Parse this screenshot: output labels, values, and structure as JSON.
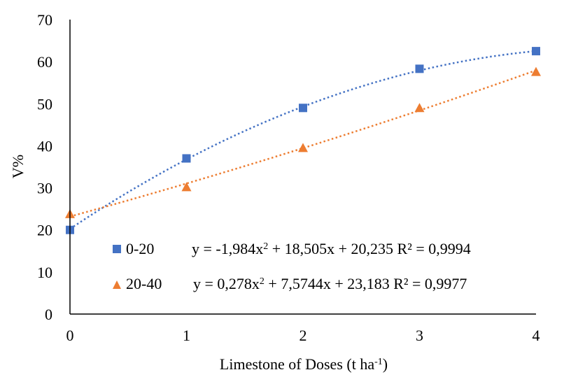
{
  "chart_data": {
    "type": "scatter",
    "title": "",
    "xlabel_prefix": "Limestone of Doses (t ha",
    "xlabel_sup": "-1",
    "xlabel_suffix": ")",
    "ylabel": "V%",
    "xlim": [
      0,
      4
    ],
    "ylim": [
      0,
      70
    ],
    "xticks": [
      "0",
      "1",
      "2",
      "3",
      "4"
    ],
    "yticks": [
      "0",
      "10",
      "20",
      "30",
      "40",
      "50",
      "60",
      "70"
    ],
    "grid": false,
    "legend_position": "bottom-right",
    "series": [
      {
        "name": "0-20",
        "marker": "square",
        "color": "#4472C4",
        "x": [
          0,
          1,
          2,
          3,
          4
        ],
        "values": [
          20,
          37,
          49,
          58.3,
          62.5
        ],
        "trendline": {
          "type": "polynomial",
          "a": -1.984,
          "b": 18.505,
          "c": 20.235
        },
        "equation": {
          "pre": "y = -1,984x",
          "sup": "2",
          "post": " + 18,505x + 20,235  R² = 0,9994"
        }
      },
      {
        "name": "20-40",
        "marker": "triangle",
        "color": "#ED7D31",
        "x": [
          0,
          1,
          2,
          3,
          4
        ],
        "values": [
          23.8,
          30.2,
          39.5,
          49,
          57.6
        ],
        "trendline": {
          "type": "polynomial",
          "a": 0.278,
          "b": 7.5744,
          "c": 23.183
        },
        "equation": {
          "pre": "y = 0,278x",
          "sup": "2",
          "post": " + 7,5744x + 23,183  R² = 0,9977"
        }
      }
    ]
  }
}
